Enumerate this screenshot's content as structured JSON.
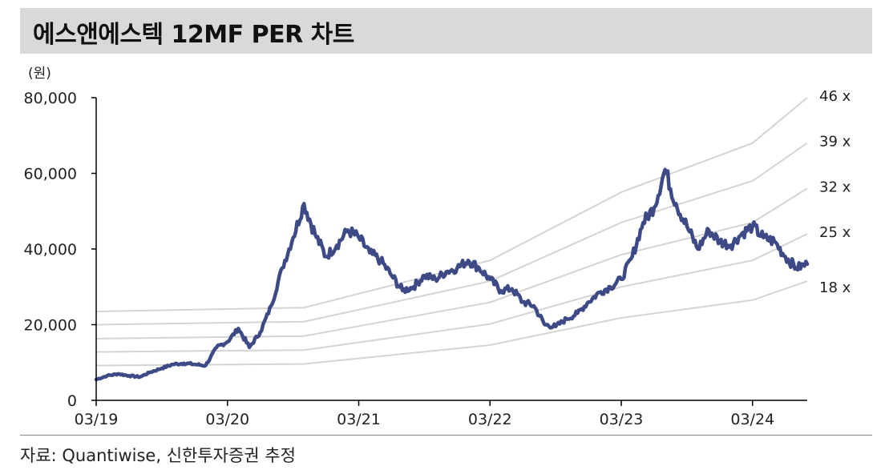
{
  "title": "에스앤에스텍 12MF PER 차트",
  "source": "자료: Quantiwise, 신한투자증권 추정",
  "colors": {
    "price": "#3d4a86",
    "band": "#d4d4d4",
    "axis": "#000000"
  },
  "chart_data": {
    "type": "line",
    "unit_label": "(원)",
    "ylim": [
      0,
      80000
    ],
    "y_ticks": [
      {
        "value": 0,
        "label": "0"
      },
      {
        "value": 20000,
        "label": "20,000"
      },
      {
        "value": 40000,
        "label": "40,000"
      },
      {
        "value": 60000,
        "label": "60,000"
      },
      {
        "value": 80000,
        "label": "80,000"
      }
    ],
    "x_ticks": [
      "03/19",
      "03/20",
      "03/21",
      "03/22",
      "03/23",
      "03/24"
    ],
    "x_range": [
      "2019-03",
      "2024-08"
    ],
    "grid": false,
    "bands": [
      {
        "name": "46 x",
        "points": [
          [
            "2019-03",
            23500
          ],
          [
            "2020-10",
            24500
          ],
          [
            "2022-03",
            37000
          ],
          [
            "2023-03",
            55000
          ],
          [
            "2024-03",
            68000
          ],
          [
            "2024-08",
            80000
          ]
        ]
      },
      {
        "name": "39 x",
        "points": [
          [
            "2019-03",
            20000
          ],
          [
            "2020-10",
            20800
          ],
          [
            "2022-03",
            31500
          ],
          [
            "2023-03",
            47000
          ],
          [
            "2024-03",
            58000
          ],
          [
            "2024-08",
            68000
          ]
        ]
      },
      {
        "name": "32 x",
        "points": [
          [
            "2019-03",
            16300
          ],
          [
            "2020-10",
            17000
          ],
          [
            "2022-03",
            25900
          ],
          [
            "2023-03",
            38500
          ],
          [
            "2024-03",
            47000
          ],
          [
            "2024-08",
            56000
          ]
        ]
      },
      {
        "name": "25 x",
        "points": [
          [
            "2019-03",
            12800
          ],
          [
            "2020-10",
            13300
          ],
          [
            "2022-03",
            20200
          ],
          [
            "2023-03",
            30000
          ],
          [
            "2024-03",
            37000
          ],
          [
            "2024-08",
            44000
          ]
        ]
      },
      {
        "name": "18 x",
        "points": [
          [
            "2019-03",
            9200
          ],
          [
            "2020-10",
            9600
          ],
          [
            "2022-03",
            14600
          ],
          [
            "2023-03",
            21800
          ],
          [
            "2024-03",
            26500
          ],
          [
            "2024-08",
            31500
          ]
        ]
      }
    ],
    "series": [
      {
        "points": [
          [
            "2019-03",
            5500
          ],
          [
            "2019-04",
            6500
          ],
          [
            "2019-05",
            7000
          ],
          [
            "2019-06",
            6500
          ],
          [
            "2019-07",
            6200
          ],
          [
            "2019-08",
            7500
          ],
          [
            "2019-09",
            8500
          ],
          [
            "2019-10",
            9500
          ],
          [
            "2019-11",
            9800
          ],
          [
            "2019-12",
            9500
          ],
          [
            "2020-01",
            9200
          ],
          [
            "2020-02",
            14000
          ],
          [
            "2020-03",
            15500
          ],
          [
            "2020-04",
            19000
          ],
          [
            "2020-05",
            14000
          ],
          [
            "2020-06",
            18000
          ],
          [
            "2020-07",
            25000
          ],
          [
            "2020-08",
            35000
          ],
          [
            "2020-09",
            43000
          ],
          [
            "2020-10",
            52000
          ],
          [
            "2020-11",
            44000
          ],
          [
            "2020-12",
            38000
          ],
          [
            "2021-01",
            41000
          ],
          [
            "2021-02",
            45000
          ],
          [
            "2021-03",
            43000
          ],
          [
            "2021-04",
            39000
          ],
          [
            "2021-05",
            37000
          ],
          [
            "2021-06",
            33000
          ],
          [
            "2021-07",
            29000
          ],
          [
            "2021-08",
            30000
          ],
          [
            "2021-09",
            33000
          ],
          [
            "2021-10",
            32000
          ],
          [
            "2021-11",
            34000
          ],
          [
            "2021-12",
            35000
          ],
          [
            "2022-01",
            37000
          ],
          [
            "2022-02",
            35000
          ],
          [
            "2022-03",
            32000
          ],
          [
            "2022-04",
            29000
          ],
          [
            "2022-05",
            29500
          ],
          [
            "2022-06",
            26000
          ],
          [
            "2022-07",
            25000
          ],
          [
            "2022-08",
            20000
          ],
          [
            "2022-09",
            19500
          ],
          [
            "2022-10",
            21500
          ],
          [
            "2022-11",
            23000
          ],
          [
            "2022-12",
            26000
          ],
          [
            "2023-01",
            28500
          ],
          [
            "2023-02",
            30000
          ],
          [
            "2023-03",
            32000
          ],
          [
            "2023-04",
            38000
          ],
          [
            "2023-05",
            47000
          ],
          [
            "2023-06",
            51000
          ],
          [
            "2023-07",
            61000
          ],
          [
            "2023-08",
            52000
          ],
          [
            "2023-09",
            46000
          ],
          [
            "2023-10",
            40000
          ],
          [
            "2023-11",
            45000
          ],
          [
            "2023-12",
            42000
          ],
          [
            "2024-01",
            41000
          ],
          [
            "2024-02",
            44000
          ],
          [
            "2024-03",
            46000
          ],
          [
            "2024-04",
            43000
          ],
          [
            "2024-05",
            42000
          ],
          [
            "2024-06",
            38000
          ],
          [
            "2024-07",
            35000
          ],
          [
            "2024-08",
            36000
          ]
        ]
      }
    ]
  }
}
